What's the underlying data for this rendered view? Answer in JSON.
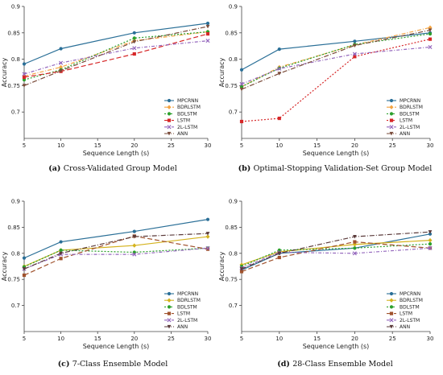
{
  "chart_data": [
    {
      "type": "line",
      "panel_letter": "(a)",
      "caption": "Cross-Validated Group Model",
      "xlabel": "Sequence Length (s)",
      "ylabel": "Accuracy",
      "x": [
        5,
        10,
        20,
        30
      ],
      "xticks": [
        5,
        10,
        15,
        20,
        25,
        30
      ],
      "xlim": [
        5,
        30
      ],
      "ylim": [
        0.65,
        0.9
      ],
      "yticks": [
        0.7,
        0.75,
        0.8,
        0.85,
        0.9
      ],
      "grid": false,
      "legend_position": "bottom-right",
      "series": [
        {
          "name": "MPCRNN",
          "values": [
            0.791,
            0.82,
            0.85,
            0.868
          ],
          "color": "#2a6f97",
          "dash": "",
          "marker": "circle"
        },
        {
          "name": "BDRLSTM",
          "values": [
            0.768,
            0.785,
            0.835,
            0.852
          ],
          "color": "#f4a442",
          "dash": "5,2,1,2",
          "marker": "diamond"
        },
        {
          "name": "BDLSTM",
          "values": [
            0.761,
            0.78,
            0.84,
            0.852
          ],
          "color": "#2ca02c",
          "dash": "2,2",
          "marker": "circle"
        },
        {
          "name": "LSTM",
          "values": [
            0.766,
            0.777,
            0.81,
            0.848
          ],
          "color": "#d62728",
          "dash": "6,3",
          "marker": "square"
        },
        {
          "name": "2L-LSTM",
          "values": [
            0.772,
            0.793,
            0.821,
            0.835
          ],
          "color": "#9467bd",
          "dash": "4,2,1,2",
          "marker": "x"
        },
        {
          "name": "ANN",
          "values": [
            0.75,
            0.778,
            0.833,
            0.862
          ],
          "color": "#7a4b3a",
          "dash": "6,2,1,2",
          "marker": "triangle"
        }
      ]
    },
    {
      "type": "line",
      "panel_letter": "(b)",
      "caption": "Optimal-Stopping Validation-Set Group Model",
      "xlabel": "Sequence Length (s)",
      "ylabel": "Accuracy",
      "x": [
        5,
        10,
        20,
        30
      ],
      "xticks": [
        5,
        10,
        15,
        20,
        25,
        30
      ],
      "xlim": [
        5,
        30
      ],
      "ylim": [
        0.65,
        0.9
      ],
      "yticks": [
        0.7,
        0.75,
        0.8,
        0.85,
        0.9
      ],
      "grid": false,
      "legend_position": "bottom-right",
      "series": [
        {
          "name": "MPCRNN",
          "values": [
            0.78,
            0.819,
            0.834,
            0.85
          ],
          "color": "#2a6f97",
          "dash": "",
          "marker": "circle"
        },
        {
          "name": "BDRLSTM",
          "values": [
            0.748,
            0.785,
            0.827,
            0.86
          ],
          "color": "#f4a442",
          "dash": "5,2,1,2",
          "marker": "diamond"
        },
        {
          "name": "BDLSTM",
          "values": [
            0.748,
            0.783,
            0.828,
            0.848
          ],
          "color": "#2ca02c",
          "dash": "2,2",
          "marker": "circle"
        },
        {
          "name": "LSTM",
          "values": [
            0.682,
            0.688,
            0.805,
            0.838
          ],
          "color": "#d62728",
          "dash": "2,2",
          "marker": "square"
        },
        {
          "name": "2L-LSTM",
          "values": [
            0.753,
            0.782,
            0.81,
            0.823
          ],
          "color": "#9467bd",
          "dash": "4,2,1,2",
          "marker": "x"
        },
        {
          "name": "ANN",
          "values": [
            0.743,
            0.773,
            0.826,
            0.855
          ],
          "color": "#7a4b3a",
          "dash": "6,2,1,2",
          "marker": "triangle"
        }
      ]
    },
    {
      "type": "line",
      "panel_letter": "(c)",
      "caption": "7-Class Ensemble Model",
      "xlabel": "Sequence Length (s)",
      "ylabel": "Accuracy",
      "x": [
        5,
        10,
        20,
        30
      ],
      "xticks": [
        5,
        10,
        15,
        20,
        25,
        30
      ],
      "xlim": [
        5,
        30
      ],
      "ylim": [
        0.65,
        0.9
      ],
      "yticks": [
        0.7,
        0.75,
        0.8,
        0.85,
        0.9
      ],
      "grid": false,
      "legend_position": "bottom-right",
      "series": [
        {
          "name": "MPCRNN",
          "values": [
            0.791,
            0.822,
            0.842,
            0.865
          ],
          "color": "#2a6f97",
          "dash": "",
          "marker": "circle"
        },
        {
          "name": "BDRLSTM",
          "values": [
            0.775,
            0.806,
            0.815,
            0.832
          ],
          "color": "#d4b21c",
          "dash": "",
          "marker": "diamond"
        },
        {
          "name": "BDLSTM",
          "values": [
            0.774,
            0.806,
            0.802,
            0.81
          ],
          "color": "#2ca02c",
          "dash": "2,2",
          "marker": "circle"
        },
        {
          "name": "LSTM",
          "values": [
            0.758,
            0.79,
            0.833,
            0.808
          ],
          "color": "#a0522d",
          "dash": "6,3",
          "marker": "square"
        },
        {
          "name": "2L-LSTM",
          "values": [
            0.77,
            0.798,
            0.798,
            0.81
          ],
          "color": "#9467bd",
          "dash": "4,2,1,2",
          "marker": "x"
        },
        {
          "name": "ANN",
          "values": [
            0.77,
            0.8,
            0.832,
            0.838
          ],
          "color": "#5a3a3a",
          "dash": "6,2,1,2",
          "marker": "triangle"
        }
      ]
    },
    {
      "type": "line",
      "panel_letter": "(d)",
      "caption": "28-Class Ensemble Model",
      "xlabel": "Sequence Length (s)",
      "ylabel": "Accuracy",
      "x": [
        5,
        10,
        20,
        30
      ],
      "xticks": [
        5,
        10,
        15,
        20,
        25,
        30
      ],
      "xlim": [
        5,
        30
      ],
      "ylim": [
        0.65,
        0.9
      ],
      "yticks": [
        0.7,
        0.75,
        0.8,
        0.85,
        0.9
      ],
      "grid": false,
      "legend_position": "bottom-right",
      "series": [
        {
          "name": "MPCRNN",
          "values": [
            0.768,
            0.8,
            0.81,
            0.837
          ],
          "color": "#2a6f97",
          "dash": "",
          "marker": "circle"
        },
        {
          "name": "BDRLSTM",
          "values": [
            0.778,
            0.803,
            0.817,
            0.825
          ],
          "color": "#d4b21c",
          "dash": "",
          "marker": "diamond"
        },
        {
          "name": "BDLSTM",
          "values": [
            0.775,
            0.806,
            0.81,
            0.818
          ],
          "color": "#2ca02c",
          "dash": "2,2",
          "marker": "circle"
        },
        {
          "name": "LSTM",
          "values": [
            0.765,
            0.792,
            0.822,
            0.81
          ],
          "color": "#a0522d",
          "dash": "6,3",
          "marker": "square"
        },
        {
          "name": "2L-LSTM",
          "values": [
            0.772,
            0.802,
            0.8,
            0.81
          ],
          "color": "#9467bd",
          "dash": "4,2,1,2",
          "marker": "x"
        },
        {
          "name": "ANN",
          "values": [
            0.77,
            0.8,
            0.832,
            0.841
          ],
          "color": "#5a3a3a",
          "dash": "6,2,1,2",
          "marker": "triangle"
        }
      ]
    }
  ]
}
